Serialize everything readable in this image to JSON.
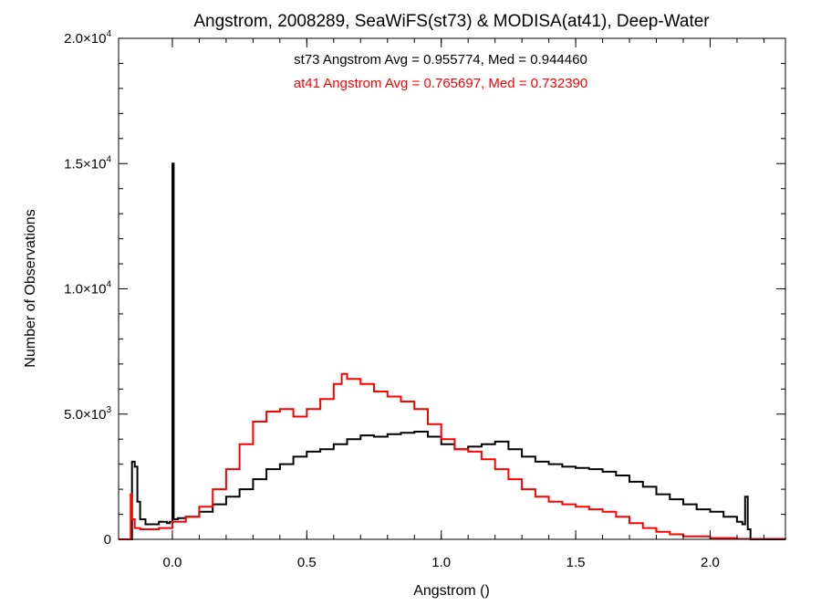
{
  "chart_data": {
    "type": "line",
    "title": "Angstrom, 2008289, SeaWiFS(st73) & MODISA(at41), Deep-Water",
    "xlabel": "Angstrom ()",
    "ylabel": "Number of Observations",
    "xlim": [
      -0.2,
      2.28
    ],
    "ylim": [
      0,
      20000
    ],
    "x_ticks": [
      {
        "value": 0.0,
        "label": "0.0"
      },
      {
        "value": 0.5,
        "label": "0.5"
      },
      {
        "value": 1.0,
        "label": "1.0"
      },
      {
        "value": 1.5,
        "label": "1.5"
      },
      {
        "value": 2.0,
        "label": "2.0"
      }
    ],
    "y_ticks": [
      {
        "value": 0,
        "mantissa": "0",
        "exponent": ""
      },
      {
        "value": 5000,
        "mantissa": "5.0×10",
        "exponent": "3"
      },
      {
        "value": 10000,
        "mantissa": "1.0×10",
        "exponent": "4"
      },
      {
        "value": 15000,
        "mantissa": "1.5×10",
        "exponent": "4"
      },
      {
        "value": 20000,
        "mantissa": "2.0×10",
        "exponent": "4"
      }
    ],
    "grid": false,
    "annotations": [
      {
        "text": "st73 Angstrom Avg = 0.955774, Med = 0.944460",
        "color": "#000000"
      },
      {
        "text": "at41 Angstrom Avg = 0.765697, Med = 0.732390",
        "color": "#ff0000"
      }
    ],
    "series": [
      {
        "color": "#000000",
        "x": [
          -0.2,
          -0.16,
          -0.15,
          -0.14,
          -0.13,
          -0.12,
          -0.1,
          -0.05,
          -0.02,
          -0.01,
          0.0,
          0.005,
          0.02,
          0.05,
          0.1,
          0.15,
          0.2,
          0.25,
          0.3,
          0.35,
          0.4,
          0.45,
          0.5,
          0.55,
          0.6,
          0.65,
          0.7,
          0.75,
          0.8,
          0.85,
          0.9,
          0.95,
          1.0,
          1.05,
          1.1,
          1.15,
          1.2,
          1.25,
          1.3,
          1.35,
          1.4,
          1.45,
          1.5,
          1.55,
          1.6,
          1.65,
          1.7,
          1.75,
          1.8,
          1.85,
          1.9,
          1.95,
          2.0,
          2.05,
          2.1,
          2.12,
          2.13,
          2.14,
          2.15,
          2.28
        ],
        "y": [
          0,
          0,
          3100,
          2900,
          1500,
          800,
          600,
          700,
          650,
          700,
          15000,
          800,
          850,
          900,
          1100,
          1400,
          1700,
          2000,
          2400,
          2800,
          3000,
          3300,
          3500,
          3600,
          3800,
          4000,
          4150,
          4100,
          4200,
          4250,
          4300,
          4100,
          3800,
          3600,
          3700,
          3800,
          3900,
          3600,
          3300,
          3100,
          3000,
          2900,
          2850,
          2800,
          2700,
          2550,
          2300,
          2100,
          1800,
          1600,
          1400,
          1200,
          1100,
          900,
          700,
          600,
          1700,
          400,
          0,
          0
        ]
      },
      {
        "color": "#ff0000",
        "x": [
          -0.2,
          -0.17,
          -0.155,
          -0.15,
          -0.14,
          -0.12,
          -0.1,
          -0.05,
          0.0,
          0.05,
          0.1,
          0.15,
          0.2,
          0.25,
          0.3,
          0.35,
          0.4,
          0.45,
          0.5,
          0.55,
          0.6,
          0.63,
          0.65,
          0.7,
          0.75,
          0.8,
          0.85,
          0.9,
          0.95,
          1.0,
          1.05,
          1.1,
          1.15,
          1.2,
          1.25,
          1.3,
          1.35,
          1.4,
          1.45,
          1.5,
          1.55,
          1.6,
          1.65,
          1.7,
          1.75,
          1.8,
          1.85,
          1.9,
          2.0,
          2.1,
          2.28
        ],
        "y": [
          0,
          0,
          1800,
          800,
          450,
          400,
          400,
          450,
          700,
          900,
          1300,
          2000,
          2800,
          3800,
          4700,
          5100,
          5200,
          4900,
          5200,
          5600,
          6200,
          6600,
          6400,
          6200,
          5900,
          5700,
          5500,
          5200,
          4600,
          4000,
          3600,
          3500,
          3200,
          2800,
          2400,
          2000,
          1700,
          1500,
          1400,
          1300,
          1200,
          1100,
          900,
          650,
          450,
          300,
          200,
          120,
          50,
          20,
          0
        ]
      }
    ]
  }
}
